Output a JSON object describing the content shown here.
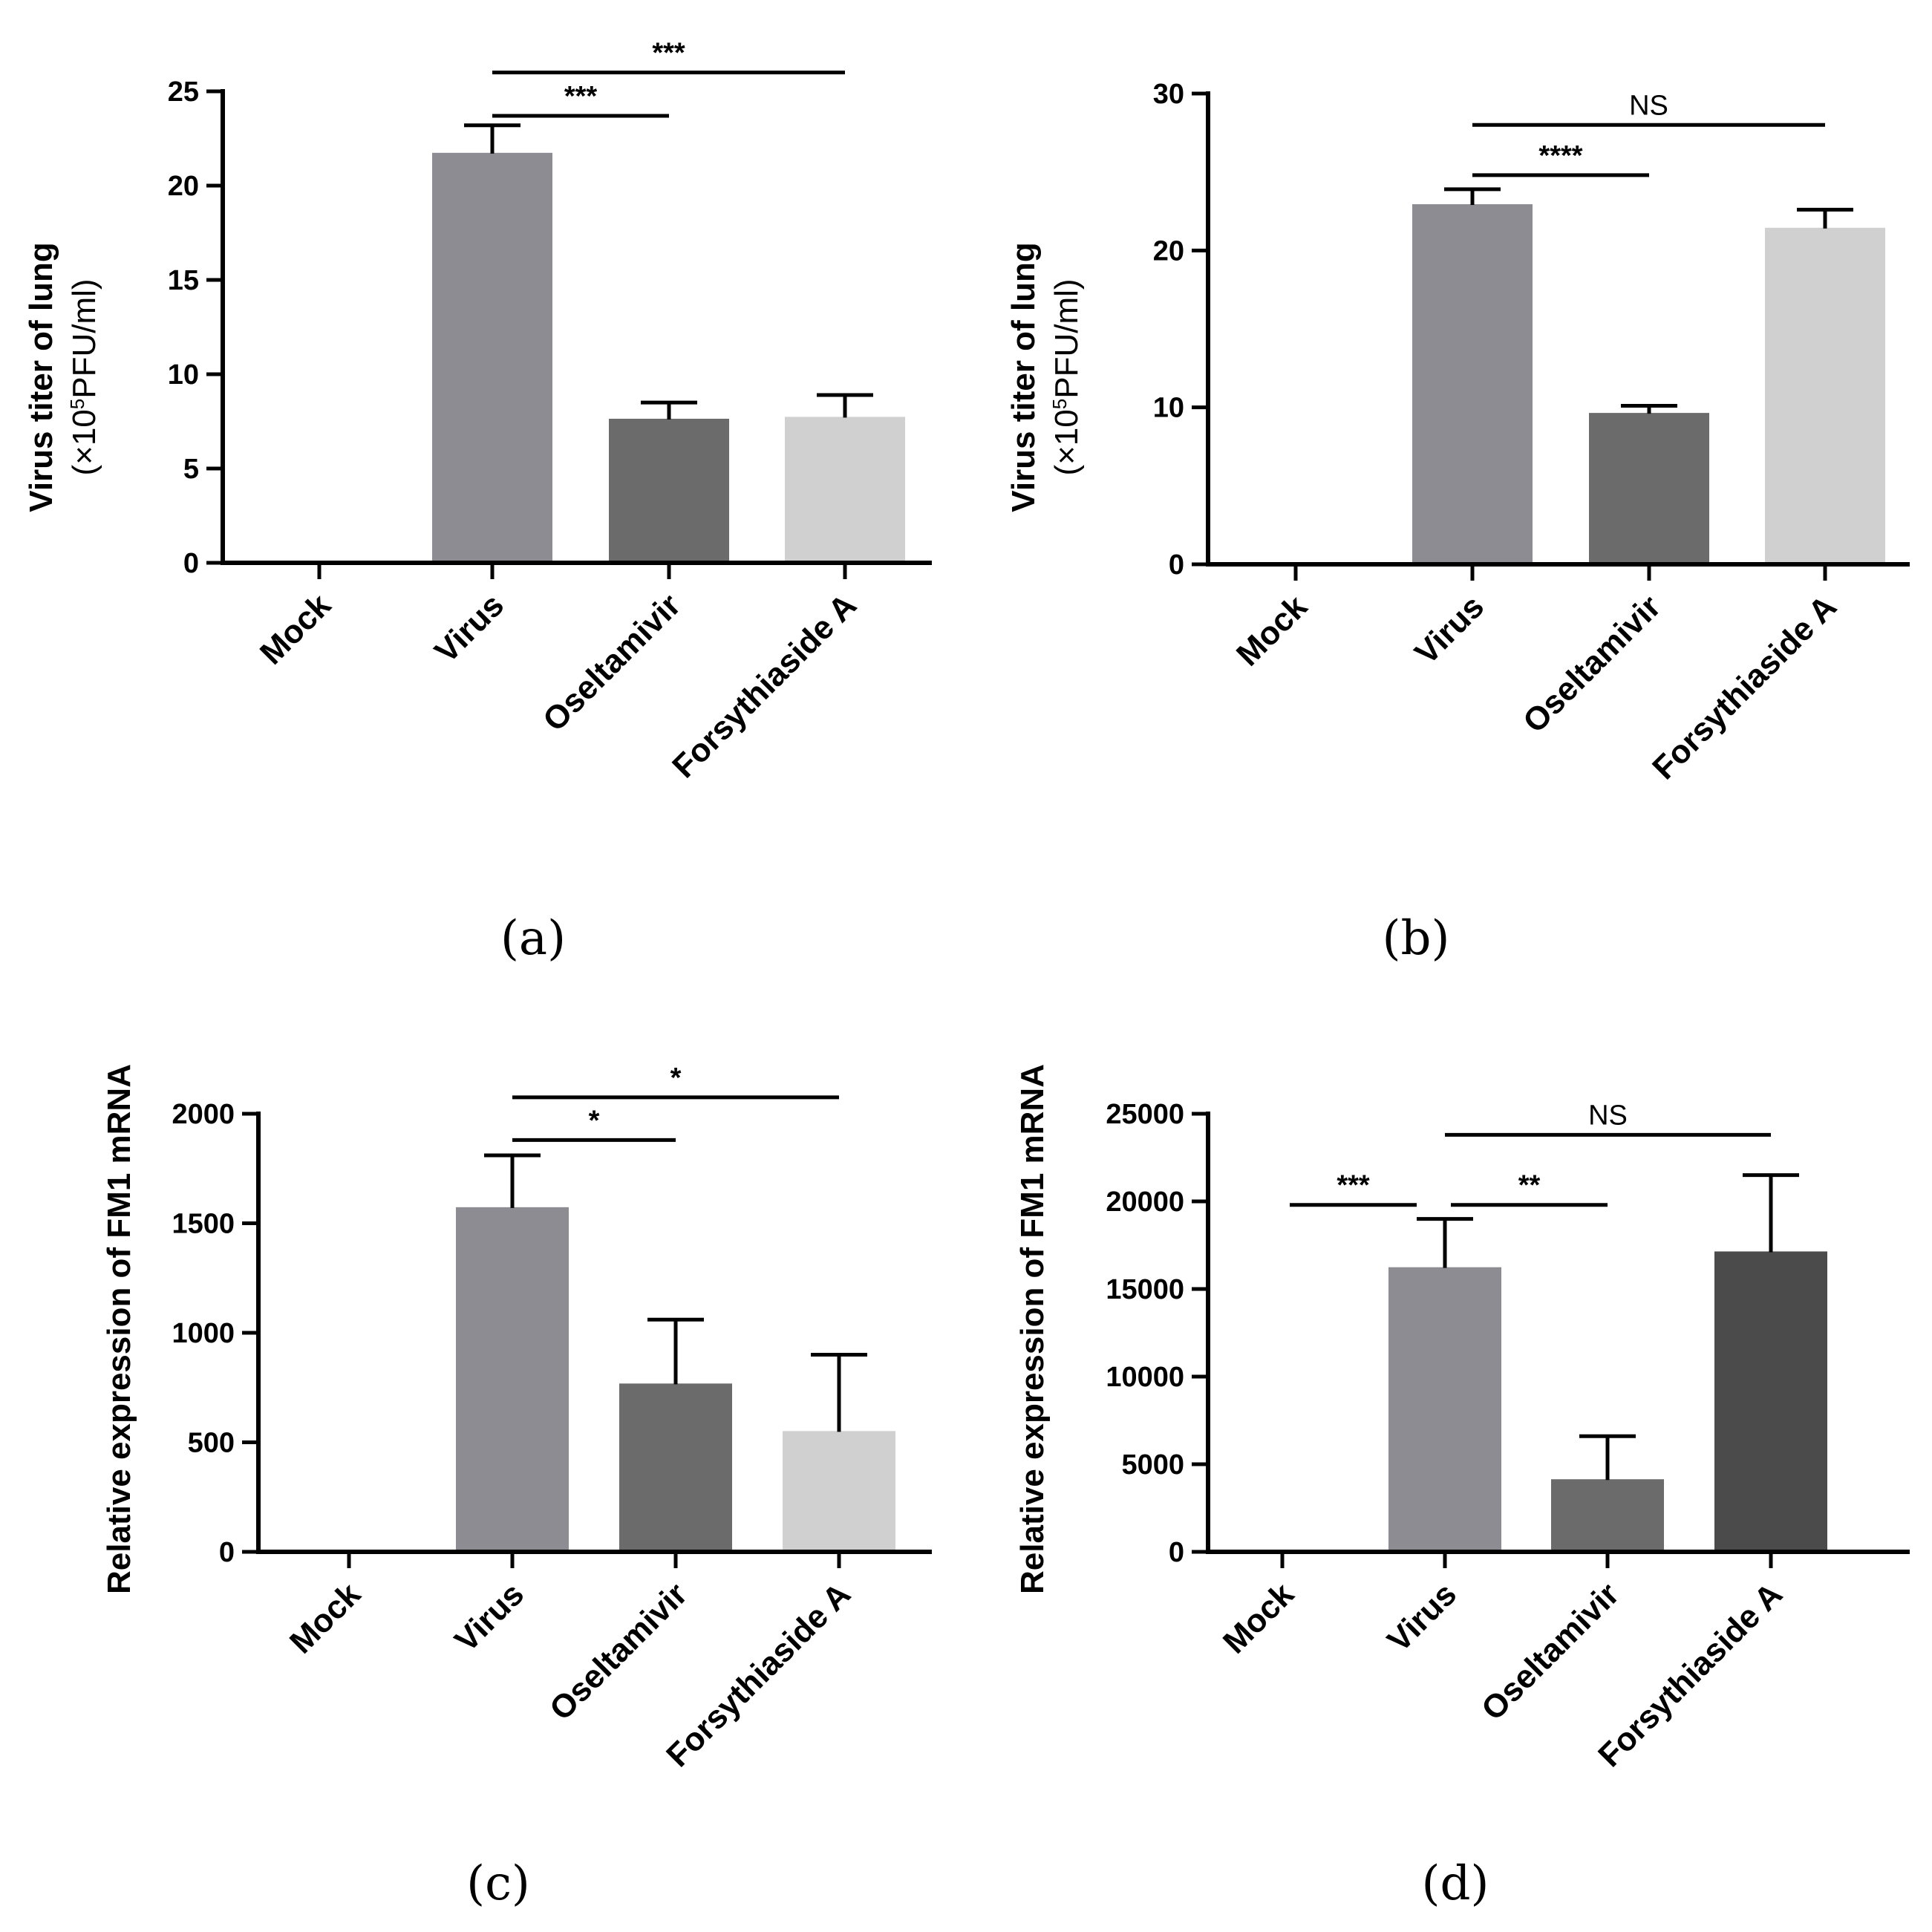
{
  "chart_data": [
    {
      "panel_label": "(a)",
      "type": "bar",
      "categories": [
        "Mock",
        "Virus",
        "Oseltamivir",
        "Forsythiaside A"
      ],
      "values": [
        0,
        21.7,
        7.6,
        7.7
      ],
      "errors": [
        0,
        1.5,
        0.9,
        1.2
      ],
      "bar_colors": [
        "#8d8c92",
        "#8d8c92",
        "#6b6b6b",
        "#d0d0d0"
      ],
      "ylabel_line1": "Virus titer of lung",
      "ylabel_line2_pre": "(×10",
      "ylabel_sup": "5",
      "ylabel_line2_post": "PFU/ml)",
      "ylim": [
        0,
        25
      ],
      "yticks": [
        0,
        5,
        10,
        15,
        20,
        25
      ],
      "ytick_labels": [
        "0",
        "5",
        "10",
        "15",
        "20",
        "25"
      ],
      "significance": [
        {
          "from": 1,
          "to": 2,
          "level": 23.7,
          "label": "***"
        },
        {
          "from": 1,
          "to": 3,
          "level": 26.0,
          "label": "***"
        }
      ]
    },
    {
      "panel_label": "(b)",
      "type": "bar",
      "categories": [
        "Mock",
        "Virus",
        "Oseltamivir",
        "Forsythiaside A"
      ],
      "values": [
        0,
        22.9,
        9.6,
        21.4
      ],
      "errors": [
        0,
        1.0,
        0.5,
        1.2
      ],
      "bar_colors": [
        "#8d8c92",
        "#8d8c92",
        "#6b6b6b",
        "#d0d0d0"
      ],
      "ylabel_line1": "Virus titer of lung",
      "ylabel_line2_pre": "(×10",
      "ylabel_sup": "5",
      "ylabel_line2_post": "PFU/ml)",
      "ylim": [
        0,
        30
      ],
      "yticks": [
        0,
        10,
        20,
        30
      ],
      "ytick_labels": [
        "0",
        "10",
        "20",
        "30"
      ],
      "significance": [
        {
          "from": 1,
          "to": 2,
          "level": 24.8,
          "label": "****"
        },
        {
          "from": 1,
          "to": 3,
          "level": 28.0,
          "label": "NS"
        }
      ]
    },
    {
      "panel_label": "(c)",
      "type": "bar",
      "categories": [
        "Mock",
        "Virus",
        "Oseltamivir",
        "Forsythiaside A"
      ],
      "values": [
        0,
        1570,
        765,
        548
      ],
      "errors": [
        0,
        240,
        295,
        352
      ],
      "bar_colors": [
        "#8d8c92",
        "#8d8c92",
        "#6b6b6b",
        "#d0d0d0"
      ],
      "ylabel_line1": "Relative expression of FM1 mRNA",
      "ylim": [
        0,
        2000
      ],
      "yticks": [
        0,
        500,
        1000,
        1500,
        2000
      ],
      "ytick_labels": [
        "0",
        "500",
        "1000",
        "1500",
        "2000"
      ],
      "significance": [
        {
          "from": 1,
          "to": 2,
          "level": 1880,
          "label": "*"
        },
        {
          "from": 1,
          "to": 3,
          "level": 2075,
          "label": "*"
        }
      ]
    },
    {
      "panel_label": "(d)",
      "type": "bar",
      "categories": [
        "Mock",
        "Virus",
        "Oseltamivir",
        "Forsythiaside A"
      ],
      "values": [
        0,
        16200,
        4100,
        17100
      ],
      "errors": [
        0,
        2800,
        2500,
        4400
      ],
      "bar_colors": [
        "#8d8c92",
        "#8d8c92",
        "#6b6b6b",
        "#4b4b4b"
      ],
      "ylabel_line1": "Relative expression of FM1 mRNA",
      "ylim": [
        0,
        25000
      ],
      "yticks": [
        0,
        5000,
        10000,
        15000,
        20000,
        25000
      ],
      "ytick_labels": [
        "0",
        "5000",
        "10000",
        "15000",
        "20000",
        "25000"
      ],
      "significance": [
        {
          "from": 0,
          "to": 1,
          "level": 19800,
          "label": "***"
        },
        {
          "from": 1,
          "to": 2,
          "level": 19800,
          "label": "**"
        },
        {
          "from": 1,
          "to": 3,
          "level": 23800,
          "label": "NS"
        }
      ]
    }
  ]
}
